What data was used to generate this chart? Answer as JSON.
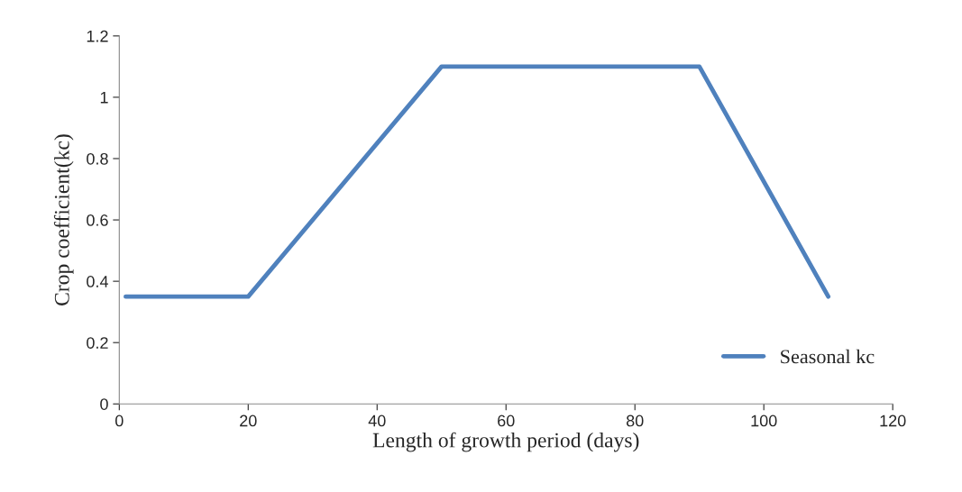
{
  "chart_data": {
    "type": "line",
    "xlabel": "Length of growth period (days)",
    "ylabel": "Crop coefficient(kc)",
    "x": [
      1,
      20,
      50,
      90,
      110
    ],
    "series": [
      {
        "name": "Seasonal kc",
        "color": "#4f81bd",
        "values": [
          0.35,
          0.35,
          1.1,
          1.1,
          0.35
        ]
      }
    ],
    "xlim": [
      0,
      120
    ],
    "xticks": [
      0,
      20,
      40,
      60,
      80,
      100,
      120
    ],
    "ylim": [
      0,
      1.2
    ],
    "yticks": [
      0,
      0.2,
      0.4,
      0.6,
      0.8,
      1,
      1.2
    ],
    "grid": false,
    "legend": "bottom right",
    "marker": "none",
    "line_style": "solid"
  }
}
